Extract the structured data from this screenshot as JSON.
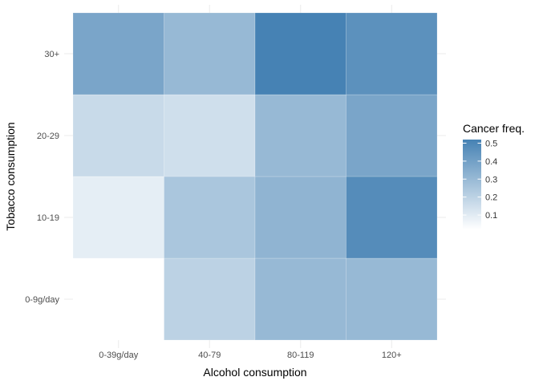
{
  "chart_data": {
    "type": "heatmap",
    "x_categories": [
      "0-39g/day",
      "40-79",
      "80-119",
      "120+"
    ],
    "y_categories": [
      "0-9g/day",
      "10-19",
      "20-29",
      "30+"
    ],
    "xlabel": "Alcohol consumption",
    "ylabel": "Tobacco consumption",
    "legend": {
      "title": "Cancer freq.",
      "breaks": [
        0.1,
        0.2,
        0.3,
        0.4,
        0.5
      ],
      "break_labels": [
        "0.1",
        "0.2",
        "0.3",
        "0.4",
        "0.5"
      ],
      "range": [
        0.02,
        0.52
      ],
      "low_color": "#ffffff",
      "high_color": "#4682b4",
      "position": "right"
    },
    "values": [
      [
        0.02,
        0.2,
        0.3,
        0.3
      ],
      [
        0.09,
        0.25,
        0.32,
        0.48
      ],
      [
        0.17,
        0.15,
        0.3,
        0.38
      ],
      [
        0.38,
        0.3,
        0.52,
        0.46
      ]
    ],
    "grid": true
  }
}
